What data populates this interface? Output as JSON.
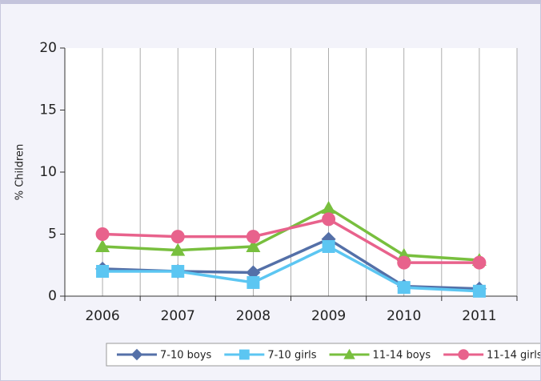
{
  "chart_data": {
    "type": "line",
    "y_label": "% Children",
    "categories": [
      "2006",
      "2007",
      "2008",
      "2009",
      "2010",
      "2011"
    ],
    "series": [
      {
        "name": "7-10 boys",
        "color": "#5470a8",
        "marker": "diamond",
        "values": [
          2.2,
          2.0,
          1.9,
          4.6,
          0.8,
          0.6
        ]
      },
      {
        "name": "7-10 girls",
        "color": "#5cc6f2",
        "marker": "square",
        "values": [
          2.0,
          2.0,
          1.1,
          4.0,
          0.7,
          0.4
        ]
      },
      {
        "name": "11-14 boys",
        "color": "#78bf3e",
        "marker": "triangle",
        "values": [
          4.0,
          3.7,
          4.0,
          7.1,
          3.3,
          2.9
        ]
      },
      {
        "name": "11-14 girls",
        "color": "#e8628c",
        "marker": "circle",
        "values": [
          5.0,
          4.8,
          4.8,
          6.2,
          2.7,
          2.7
        ]
      }
    ],
    "ylim": [
      0,
      20
    ],
    "yticks": [
      0,
      5,
      10,
      15,
      20
    ],
    "legend": "bottom"
  }
}
